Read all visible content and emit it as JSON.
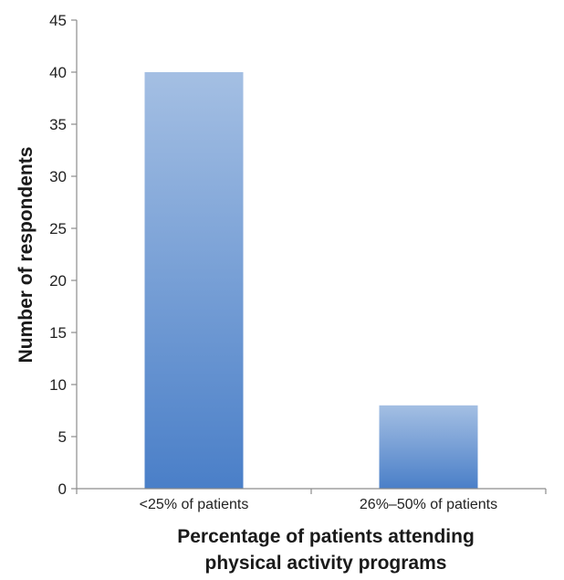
{
  "chart_data": {
    "type": "bar",
    "categories": [
      "<25% of patients",
      "26%–50% of patients"
    ],
    "values": [
      40,
      8
    ],
    "title": "",
    "xlabel_lines": [
      "Percentage of patients attending",
      "physical activity programs"
    ],
    "ylabel": "Number of respondents",
    "ylim": [
      0,
      45
    ],
    "yticks": [
      0,
      5,
      10,
      15,
      20,
      25,
      30,
      35,
      40,
      45
    ],
    "grid": false,
    "legend": "none",
    "colors": {
      "bar_top": "#a4bfe3",
      "bar_bottom": "#4a7fc8",
      "axis": "#8c8c8c"
    }
  }
}
